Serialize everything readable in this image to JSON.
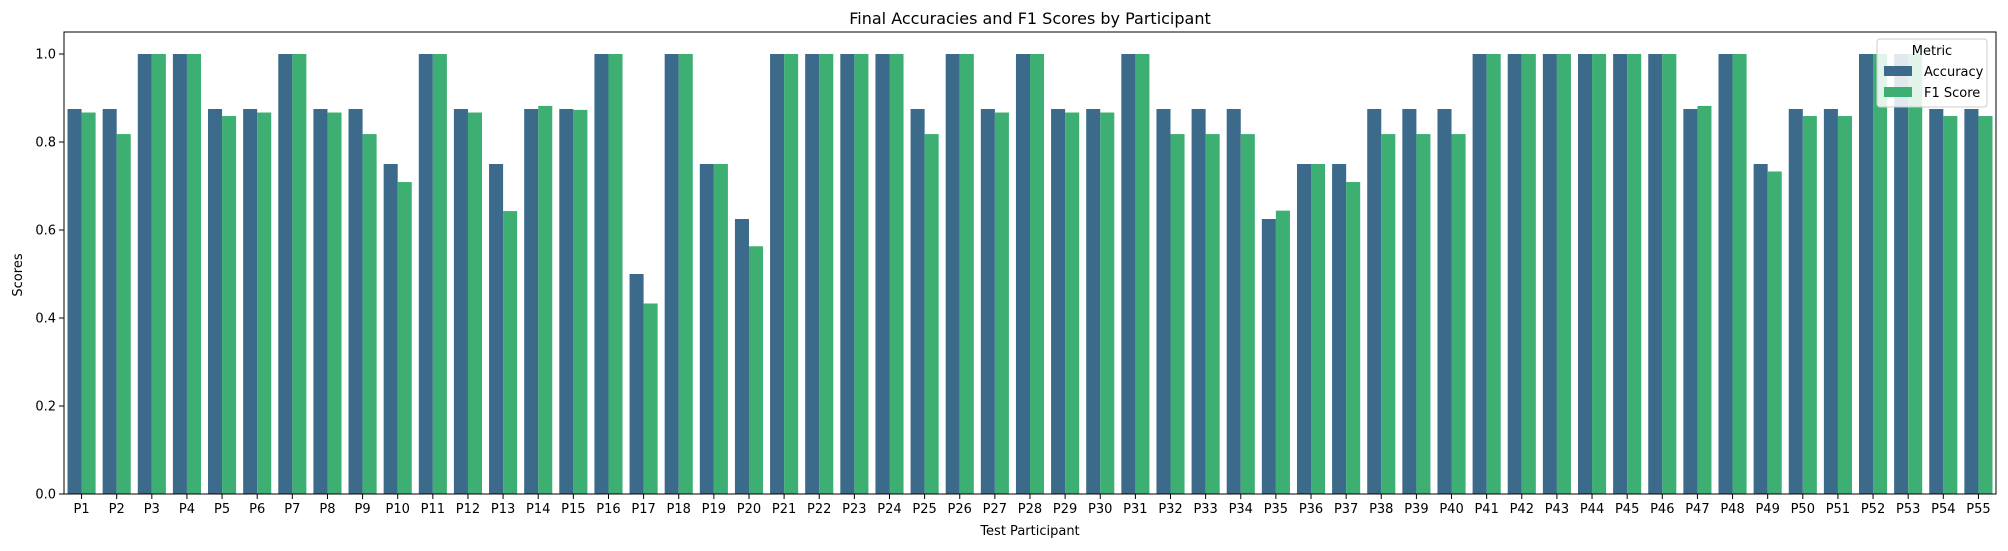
{
  "chart_data": {
    "type": "bar",
    "title": "Final Accuracies and F1 Scores by Participant",
    "xlabel": "Test Participant",
    "ylabel": "Scores",
    "ylim": [
      0,
      1.05
    ],
    "yticks": [
      "0.0",
      "0.2",
      "0.4",
      "0.6",
      "0.8",
      "1.0"
    ],
    "categories": [
      "P1",
      "P2",
      "P3",
      "P4",
      "P5",
      "P6",
      "P7",
      "P8",
      "P9",
      "P10",
      "P11",
      "P12",
      "P13",
      "P14",
      "P15",
      "P16",
      "P17",
      "P18",
      "P19",
      "P20",
      "P21",
      "P22",
      "P23",
      "P24",
      "P25",
      "P26",
      "P27",
      "P28",
      "P29",
      "P30",
      "P31",
      "P32",
      "P33",
      "P34",
      "P35",
      "P36",
      "P37",
      "P38",
      "P39",
      "P40",
      "P41",
      "P42",
      "P43",
      "P44",
      "P45",
      "P46",
      "P47",
      "P48",
      "P49",
      "P50",
      "P51",
      "P52",
      "P53",
      "P54",
      "P55"
    ],
    "series": [
      {
        "name": "Accuracy",
        "color": "#3b6a8a",
        "values": [
          0.875,
          0.875,
          1.0,
          1.0,
          0.875,
          0.875,
          1.0,
          0.875,
          0.875,
          0.75,
          1.0,
          0.875,
          0.75,
          0.875,
          0.875,
          1.0,
          0.5,
          1.0,
          0.75,
          0.625,
          1.0,
          1.0,
          1.0,
          1.0,
          0.875,
          1.0,
          0.875,
          1.0,
          0.875,
          0.875,
          1.0,
          0.875,
          0.875,
          0.875,
          0.625,
          0.75,
          0.75,
          0.875,
          0.875,
          0.875,
          1.0,
          1.0,
          1.0,
          1.0,
          1.0,
          1.0,
          0.875,
          1.0,
          0.75,
          0.875,
          0.875,
          1.0,
          1.0,
          0.875,
          0.875
        ]
      },
      {
        "name": "F1 Score",
        "color": "#3daf73",
        "values": [
          0.867,
          0.818,
          1.0,
          1.0,
          0.859,
          0.867,
          1.0,
          0.867,
          0.818,
          0.709,
          1.0,
          0.867,
          0.643,
          0.882,
          0.873,
          1.0,
          0.433,
          1.0,
          0.75,
          0.563,
          1.0,
          1.0,
          1.0,
          1.0,
          0.818,
          1.0,
          0.867,
          1.0,
          0.867,
          0.867,
          1.0,
          0.818,
          0.818,
          0.818,
          0.644,
          0.75,
          0.709,
          0.818,
          0.818,
          0.818,
          1.0,
          1.0,
          1.0,
          1.0,
          1.0,
          1.0,
          0.882,
          1.0,
          0.733,
          0.859,
          0.859,
          1.0,
          1.0,
          0.859,
          0.859
        ]
      }
    ],
    "grid": false,
    "legend": {
      "title": "Metric",
      "position": "top-right"
    }
  }
}
